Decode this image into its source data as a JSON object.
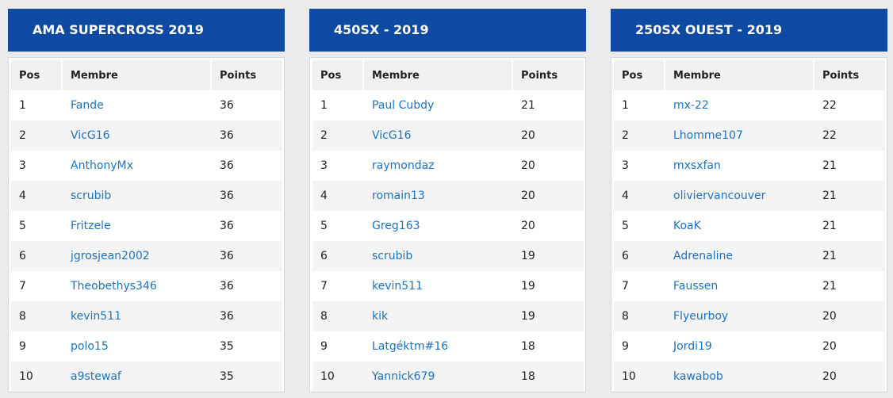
{
  "columns": {
    "pos": "Pos",
    "member": "Membre",
    "points": "Points"
  },
  "colors": {
    "header_bg": "#0e4aa3",
    "link": "#1e73be"
  },
  "panels": [
    {
      "title": "AMA SUPERCROSS 2019",
      "rows": [
        {
          "pos": "1",
          "member": "Fande",
          "points": "36"
        },
        {
          "pos": "2",
          "member": "VicG16",
          "points": "36"
        },
        {
          "pos": "3",
          "member": "AnthonyMx",
          "points": "36"
        },
        {
          "pos": "4",
          "member": "scrubib",
          "points": "36"
        },
        {
          "pos": "5",
          "member": "Fritzele",
          "points": "36"
        },
        {
          "pos": "6",
          "member": "jgrosjean2002",
          "points": "36"
        },
        {
          "pos": "7",
          "member": "Theobethys346",
          "points": "36"
        },
        {
          "pos": "8",
          "member": "kevin511",
          "points": "36"
        },
        {
          "pos": "9",
          "member": "polo15",
          "points": "35"
        },
        {
          "pos": "10",
          "member": "a9stewaf",
          "points": "35"
        }
      ]
    },
    {
      "title": "450SX - 2019",
      "rows": [
        {
          "pos": "1",
          "member": "Paul Cubdy",
          "points": "21"
        },
        {
          "pos": "2",
          "member": "VicG16",
          "points": "20"
        },
        {
          "pos": "3",
          "member": "raymondaz",
          "points": "20"
        },
        {
          "pos": "4",
          "member": "romain13",
          "points": "20"
        },
        {
          "pos": "5",
          "member": "Greg163",
          "points": "20"
        },
        {
          "pos": "6",
          "member": "scrubib",
          "points": "19"
        },
        {
          "pos": "7",
          "member": "kevin511",
          "points": "19"
        },
        {
          "pos": "8",
          "member": "kik",
          "points": "19"
        },
        {
          "pos": "9",
          "member": "Latgéktm#16",
          "points": "18"
        },
        {
          "pos": "10",
          "member": "Yannick679",
          "points": "18"
        }
      ]
    },
    {
      "title": "250SX OUEST - 2019",
      "rows": [
        {
          "pos": "1",
          "member": "mx-22",
          "points": "22"
        },
        {
          "pos": "2",
          "member": "Lhomme107",
          "points": "22"
        },
        {
          "pos": "3",
          "member": "mxsxfan",
          "points": "21"
        },
        {
          "pos": "4",
          "member": "oliviervancouver",
          "points": "21"
        },
        {
          "pos": "5",
          "member": "KoaK",
          "points": "21"
        },
        {
          "pos": "6",
          "member": "Adrenaline",
          "points": "21"
        },
        {
          "pos": "7",
          "member": "Faussen",
          "points": "21"
        },
        {
          "pos": "8",
          "member": "Flyeurboy",
          "points": "20"
        },
        {
          "pos": "9",
          "member": "Jordi19",
          "points": "20"
        },
        {
          "pos": "10",
          "member": "kawabob",
          "points": "20"
        }
      ]
    }
  ]
}
